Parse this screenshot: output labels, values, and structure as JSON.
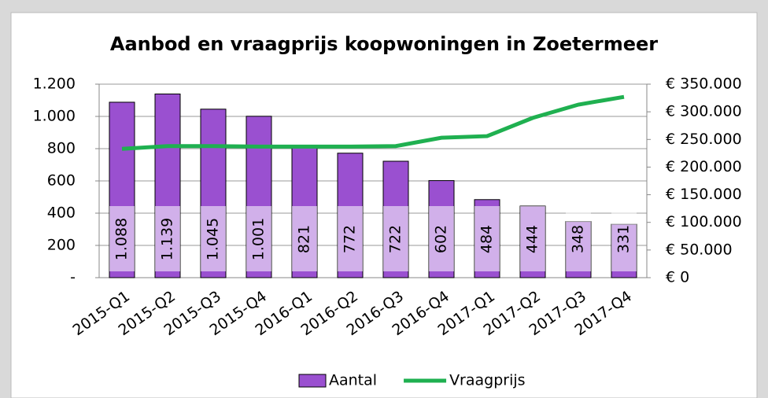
{
  "chart_data": {
    "type": "bar",
    "title": "Aanbod en vraagprijs koopwoningen in Zoetermeer",
    "categories": [
      "2015-Q1",
      "2015-Q2",
      "2015-Q3",
      "2015-Q4",
      "2016-Q1",
      "2016-Q2",
      "2016-Q3",
      "2016-Q4",
      "2017-Q1",
      "2017-Q2",
      "2017-Q3",
      "2017-Q4"
    ],
    "series": [
      {
        "name": "Aantal",
        "type": "bar",
        "axis": "y",
        "color": "#9a50d0",
        "values": [
          1088,
          1139,
          1045,
          1001,
          821,
          772,
          722,
          602,
          484,
          444,
          348,
          331
        ],
        "value_labels": [
          "1.088",
          "1.139",
          "1.045",
          "1.001",
          "821",
          "772",
          "722",
          "602",
          "484",
          "444",
          "348",
          "331"
        ]
      },
      {
        "name": "Vraagprijs",
        "type": "line",
        "axis": "y2",
        "color": "#1fb050",
        "values": [
          233000,
          238000,
          238000,
          237000,
          237000,
          237000,
          238000,
          253000,
          256000,
          289000,
          313000,
          327000
        ]
      }
    ],
    "ylim": [
      0,
      1200
    ],
    "yticks": [
      {
        "value": 0,
        "label": "-"
      },
      200,
      400,
      600,
      800,
      {
        "value": 1000,
        "label": "1.000"
      },
      {
        "value": 1200,
        "label": "1.200"
      }
    ],
    "y2lim": [
      0,
      350000
    ],
    "y2ticks": [
      {
        "value": 0,
        "label": "€ 0"
      },
      {
        "value": 50000,
        "label": "€ 50.000"
      },
      {
        "value": 100000,
        "label": "€ 100.000"
      },
      {
        "value": 150000,
        "label": "€ 150.000"
      },
      {
        "value": 200000,
        "label": "€ 200.000"
      },
      {
        "value": 250000,
        "label": "€ 250.000"
      },
      {
        "value": 300000,
        "label": "€ 300.000"
      },
      {
        "value": 350000,
        "label": "€ 350.000"
      }
    ],
    "grid": true,
    "legend": "bottom"
  }
}
